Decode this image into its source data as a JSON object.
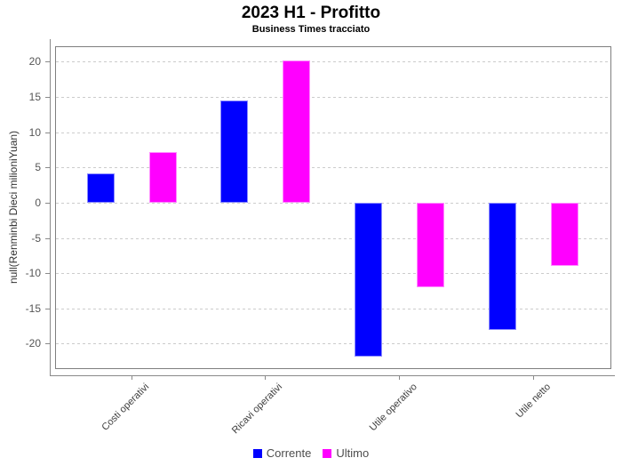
{
  "title": "2023 H1 - Profitto",
  "subtitle": "Business Times tracciato",
  "chart_data": {
    "type": "bar",
    "title": "2023 H1 - Profitto",
    "subtitle": "Business Times tracciato",
    "categories": [
      "Costi operativi",
      "Ricavi operativi",
      "Utile operativo",
      "Utile netto"
    ],
    "series": [
      {
        "name": "Corrente",
        "color": "#0000ff",
        "values": [
          4.2,
          14.5,
          -21.8,
          -18
        ]
      },
      {
        "name": "Ultimo",
        "color": "#ff00ff",
        "values": [
          7.2,
          20.2,
          -12,
          -9
        ]
      }
    ],
    "xlabel": "",
    "ylabel": "null(Renminbi Dieci milioniYuan)",
    "yticks": [
      20,
      15,
      10,
      5,
      0,
      -5,
      -10,
      -15,
      -20
    ],
    "ylim": [
      -23.6,
      22.2
    ],
    "grid": "horizontal-dashed",
    "gridline_color": "#cccccc",
    "legend_position": "bottom"
  }
}
